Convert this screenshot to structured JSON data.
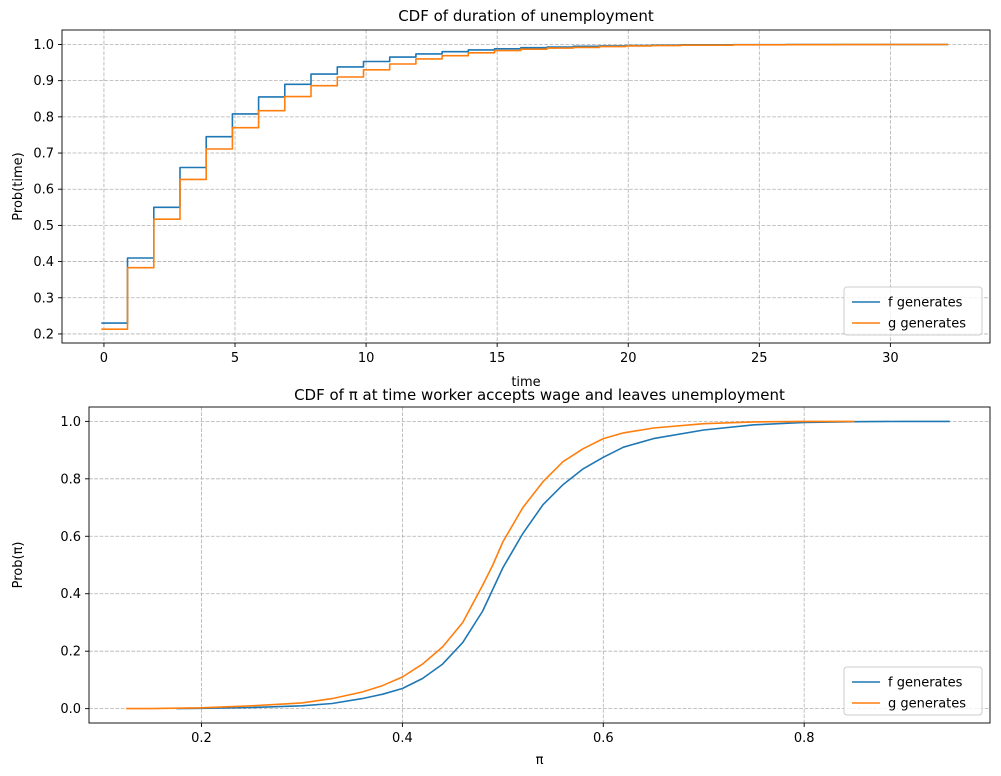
{
  "chart_data": [
    {
      "type": "line",
      "title": "CDF of duration of unemployment",
      "xlabel": "time",
      "ylabel": "Prob(time)",
      "xlim": [
        -1.6,
        33.8
      ],
      "ylim": [
        0.175,
        1.04
      ],
      "xticks": [
        0,
        5,
        10,
        15,
        20,
        25,
        30
      ],
      "xtick_labels": [
        "0",
        "5",
        "10",
        "15",
        "20",
        "25",
        "30"
      ],
      "yticks": [
        0.2,
        0.3,
        0.4,
        0.5,
        0.6,
        0.7,
        0.8,
        0.9,
        1.0
      ],
      "ytick_labels": [
        "0.2",
        "0.3",
        "0.4",
        "0.5",
        "0.6",
        "0.7",
        "0.8",
        "0.9",
        "1.0"
      ],
      "grid": true,
      "legend_position": "lower-right",
      "step": true,
      "series": [
        {
          "name": "f generates",
          "color": "#1f77b4",
          "x": [
            -0.1,
            0.9,
            1.9,
            2.9,
            3.9,
            4.9,
            5.9,
            6.9,
            7.9,
            8.9,
            9.9,
            10.9,
            11.9,
            12.9,
            13.9,
            14.9,
            15.9,
            16.9,
            17.9,
            18.9,
            19.9,
            20.9,
            22,
            24,
            26,
            28,
            30,
            32.2
          ],
          "y": [
            0.23,
            0.41,
            0.55,
            0.66,
            0.745,
            0.808,
            0.855,
            0.89,
            0.918,
            0.938,
            0.953,
            0.965,
            0.974,
            0.98,
            0.985,
            0.988,
            0.991,
            0.993,
            0.995,
            0.996,
            0.997,
            0.998,
            0.999,
            0.9993,
            0.9996,
            0.9998,
            0.9999,
            1.0
          ]
        },
        {
          "name": "g generates",
          "color": "#ff7f0e",
          "x": [
            -0.1,
            0.9,
            1.9,
            2.9,
            3.9,
            4.9,
            5.9,
            6.9,
            7.9,
            8.9,
            9.9,
            10.9,
            11.9,
            12.9,
            13.9,
            14.9,
            15.9,
            16.9,
            17.9,
            18.9,
            19.9,
            20.9,
            22,
            24,
            26,
            28,
            30,
            32.2
          ],
          "y": [
            0.213,
            0.383,
            0.517,
            0.627,
            0.711,
            0.77,
            0.817,
            0.856,
            0.886,
            0.91,
            0.93,
            0.946,
            0.96,
            0.969,
            0.977,
            0.983,
            0.987,
            0.99,
            0.992,
            0.994,
            0.996,
            0.997,
            0.998,
            0.999,
            0.9994,
            0.9997,
            0.9999,
            1.0
          ]
        }
      ]
    },
    {
      "type": "line",
      "title": "CDF of π at time worker accepts wage and leaves unemployment",
      "xlabel": "π",
      "ylabel": "Prob(π)",
      "xlim": [
        0.088,
        0.985
      ],
      "ylim": [
        -0.05,
        1.05
      ],
      "xticks": [
        0.2,
        0.4,
        0.6,
        0.8
      ],
      "xtick_labels": [
        "0.2",
        "0.4",
        "0.6",
        "0.8"
      ],
      "yticks": [
        0.0,
        0.2,
        0.4,
        0.6,
        0.8,
        1.0
      ],
      "ytick_labels": [
        "0.0",
        "0.2",
        "0.4",
        "0.6",
        "0.8",
        "1.0"
      ],
      "grid": true,
      "legend_position": "lower-right",
      "step": false,
      "series": [
        {
          "name": "f generates",
          "color": "#1f77b4",
          "x": [
            0.175,
            0.2,
            0.25,
            0.3,
            0.33,
            0.36,
            0.38,
            0.4,
            0.42,
            0.44,
            0.46,
            0.48,
            0.5,
            0.52,
            0.54,
            0.56,
            0.58,
            0.6,
            0.62,
            0.65,
            0.7,
            0.75,
            0.8,
            0.85,
            0.9,
            0.945
          ],
          "y": [
            0.0,
            0.001,
            0.004,
            0.01,
            0.018,
            0.035,
            0.05,
            0.07,
            0.105,
            0.155,
            0.23,
            0.34,
            0.49,
            0.61,
            0.71,
            0.78,
            0.835,
            0.875,
            0.91,
            0.94,
            0.97,
            0.988,
            0.996,
            0.999,
            1.0,
            1.0
          ]
        },
        {
          "name": "g generates",
          "color": "#ff7f0e",
          "x": [
            0.125,
            0.15,
            0.2,
            0.25,
            0.3,
            0.33,
            0.36,
            0.38,
            0.4,
            0.42,
            0.44,
            0.46,
            0.48,
            0.49,
            0.5,
            0.52,
            0.54,
            0.56,
            0.58,
            0.6,
            0.62,
            0.65,
            0.7,
            0.75,
            0.8,
            0.85
          ],
          "y": [
            0.0,
            0.0,
            0.003,
            0.01,
            0.02,
            0.035,
            0.058,
            0.08,
            0.11,
            0.155,
            0.215,
            0.3,
            0.43,
            0.5,
            0.58,
            0.7,
            0.79,
            0.86,
            0.905,
            0.94,
            0.96,
            0.977,
            0.992,
            0.998,
            1.0,
            1.0
          ]
        }
      ]
    }
  ]
}
